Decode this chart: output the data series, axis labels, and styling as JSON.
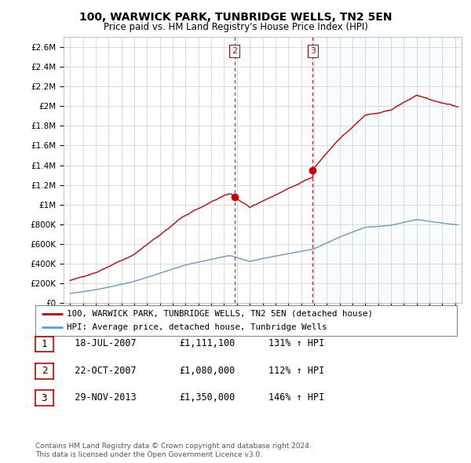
{
  "title": "100, WARWICK PARK, TUNBRIDGE WELLS, TN2 5EN",
  "subtitle": "Price paid vs. HM Land Registry's House Price Index (HPI)",
  "legend_line1": "100, WARWICK PARK, TUNBRIDGE WELLS, TN2 5EN (detached house)",
  "legend_line2": "HPI: Average price, detached house, Tunbridge Wells",
  "transactions": [
    {
      "num": 1,
      "date": "18-JUL-2007",
      "price": 1111100,
      "pct": "131%",
      "dir": "↑"
    },
    {
      "num": 2,
      "date": "22-OCT-2007",
      "price": 1080000,
      "pct": "112%",
      "dir": "↑"
    },
    {
      "num": 3,
      "date": "29-NOV-2013",
      "price": 1350000,
      "pct": "146%",
      "dir": "↑"
    }
  ],
  "footnote1": "Contains HM Land Registry data © Crown copyright and database right 2024.",
  "footnote2": "This data is licensed under the Open Government Licence v3.0.",
  "ylim": [
    0,
    2700000
  ],
  "yticks": [
    0,
    200000,
    400000,
    600000,
    800000,
    1000000,
    1200000,
    1400000,
    1600000,
    1800000,
    2000000,
    2200000,
    2400000,
    2600000
  ],
  "red_color": "#cc0000",
  "blue_color": "#6699cc",
  "blue_fill_color": "#ddeeff",
  "vline_color": "#cc0000",
  "grid_color": "#cccccc",
  "bg_color": "#ffffff",
  "vline1_x": 2007.54,
  "vline2_x": 2007.81,
  "vline3_x": 2013.91,
  "marker2_x": 2007.81,
  "marker2_y": 1080000,
  "marker3_x": 2013.91,
  "marker3_y": 1350000,
  "xlim_left": 1994.5,
  "xlim_right": 2025.5
}
